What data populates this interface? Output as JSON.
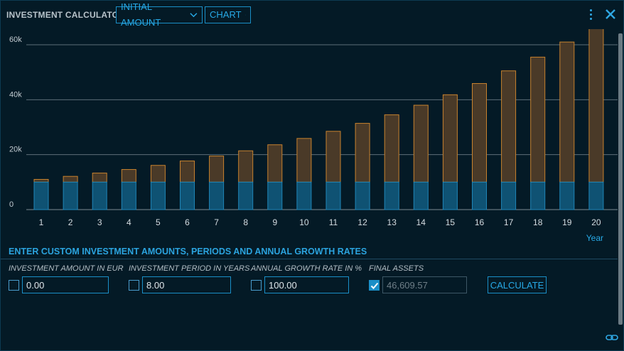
{
  "header": {
    "title": "INVESTMENT CALCULATOR",
    "dropdown_mode": "INITIAL AMOUNT",
    "dropdown_view": "CHART"
  },
  "icons": {
    "menu": "kebab-menu-icon",
    "close": "close-icon",
    "link": "link-icon",
    "chevron": "chevron-down-icon"
  },
  "colors": {
    "accent": "#27a9e6",
    "principal_fill": "#0f5273",
    "principal_stroke": "#1f86b8",
    "growth_fill": "#4a3a28",
    "growth_stroke": "#c8822e",
    "gridline": "#5d6e78"
  },
  "chart_data": {
    "type": "bar",
    "stacked": true,
    "categories": [
      "1",
      "2",
      "3",
      "4",
      "5",
      "6",
      "7",
      "8",
      "9",
      "10",
      "11",
      "12",
      "13",
      "14",
      "15",
      "16",
      "17",
      "18",
      "19",
      "20"
    ],
    "series": [
      {
        "values": [
          10000,
          10000,
          10000,
          10000,
          10000,
          10000,
          10000,
          10000,
          10000,
          10000,
          10000,
          10000,
          10000,
          10000,
          10000,
          10000,
          10000,
          10000,
          10000,
          10000
        ]
      },
      {
        "values": [
          1000,
          2100,
          3300,
          4600,
          6100,
          7700,
          9500,
          11400,
          13600,
          15900,
          18500,
          21400,
          24500,
          28000,
          31800,
          35900,
          40500,
          45500,
          51000,
          56800
        ]
      }
    ],
    "xlabel": "Year",
    "ylabel": "",
    "ylim": [
      0,
      60000
    ],
    "yticks": [
      0,
      20000,
      40000,
      60000
    ],
    "ytick_labels": [
      "0",
      "20k",
      "40k",
      "60k"
    ],
    "grid": true
  },
  "form": {
    "section_title": "ENTER CUSTOM INVESTMENT AMOUNTS, PERIODS AND ANNUAL GROWTH RATES",
    "fields": [
      {
        "label": "INVESTMENT AMOUNT IN EUR",
        "value": "0.00",
        "checked": false
      },
      {
        "label": "INVESTMENT PERIOD IN YEARS",
        "value": "8.00",
        "checked": false
      },
      {
        "label": "ANNUAL GROWTH RATE IN %",
        "value": "100.00",
        "checked": false
      },
      {
        "label": "FINAL ASSETS",
        "value": "46,609.57",
        "checked": true
      }
    ],
    "calculate_label": "CALCULATE"
  }
}
